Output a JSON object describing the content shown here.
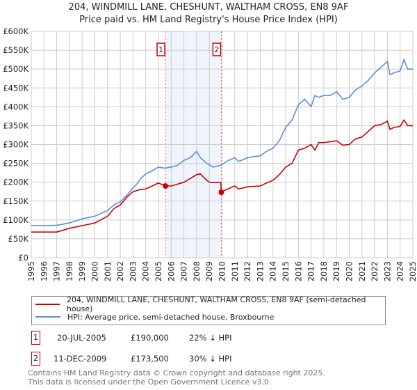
{
  "chart_data": {
    "type": "line",
    "title": "204, WINDMILL LANE, CHESHUNT, WALTHAM CROSS, EN8 9AF",
    "subtitle": "Price paid vs. HM Land Registry's House Price Index (HPI)",
    "xlabel": "",
    "ylabel": "",
    "xlim": [
      1995,
      2025
    ],
    "ylim": [
      0,
      600000
    ],
    "x_ticks": [
      "1995",
      "1996",
      "1997",
      "1998",
      "1999",
      "2000",
      "2001",
      "2002",
      "2003",
      "2004",
      "2005",
      "2006",
      "2007",
      "2008",
      "2009",
      "2010",
      "2011",
      "2012",
      "2013",
      "2014",
      "2015",
      "2016",
      "2017",
      "2018",
      "2019",
      "2020",
      "2021",
      "2022",
      "2023",
      "2024",
      "2025"
    ],
    "y_ticks": [
      {
        "value": 0,
        "label": "£0"
      },
      {
        "value": 50000,
        "label": "£50K"
      },
      {
        "value": 100000,
        "label": "£100K"
      },
      {
        "value": 150000,
        "label": "£150K"
      },
      {
        "value": 200000,
        "label": "£200K"
      },
      {
        "value": 250000,
        "label": "£250K"
      },
      {
        "value": 300000,
        "label": "£300K"
      },
      {
        "value": 350000,
        "label": "£350K"
      },
      {
        "value": 400000,
        "label": "£400K"
      },
      {
        "value": 450000,
        "label": "£450K"
      },
      {
        "value": 500000,
        "label": "£500K"
      },
      {
        "value": 550000,
        "label": "£550K"
      },
      {
        "value": 600000,
        "label": "£600K"
      }
    ],
    "grid": true,
    "highlight_range": [
      2005.55,
      2009.94
    ],
    "series": [
      {
        "name": "204, WINDMILL LANE, CHESHUNT, WALTHAM CROSS, EN8 9AF (semi-detached house)",
        "color": "#cc0000",
        "x": [
          1995,
          1996,
          1997,
          1998,
          1999,
          2000,
          2001,
          2001.5,
          2002,
          2002.5,
          2003,
          2003.5,
          2004,
          2004.5,
          2005,
          2005.55,
          2006,
          2006.5,
          2007,
          2007.5,
          2008,
          2008.3,
          2008.7,
          2009,
          2009.9,
          2009.94,
          2010.3,
          2011,
          2011.3,
          2012,
          2013,
          2013.5,
          2014,
          2014.5,
          2015,
          2015.5,
          2016,
          2016.5,
          2017,
          2017.3,
          2017.6,
          2018,
          2019,
          2019.5,
          2020,
          2020.5,
          2021,
          2021.5,
          2022,
          2022.5,
          2023,
          2023.2,
          2023.5,
          2024,
          2024.3,
          2024.6,
          2025
        ],
        "y": [
          68000,
          68000,
          68000,
          78000,
          85000,
          92000,
          110000,
          130000,
          140000,
          160000,
          175000,
          180000,
          182000,
          190000,
          198000,
          190000,
          190000,
          195000,
          200000,
          210000,
          220000,
          222000,
          208000,
          200000,
          199000,
          173500,
          180000,
          190000,
          182000,
          188000,
          190000,
          198000,
          205000,
          220000,
          240000,
          250000,
          285000,
          290000,
          300000,
          285000,
          305000,
          305000,
          310000,
          298000,
          300000,
          315000,
          320000,
          335000,
          350000,
          353000,
          362000,
          340000,
          345000,
          348000,
          365000,
          350000,
          350000
        ]
      },
      {
        "name": "HPI: Average price, semi-detached house, Broxbourne",
        "color": "#5b8fd6",
        "x": [
          1995,
          1996,
          1997,
          1998,
          1999,
          2000,
          2001,
          2001.5,
          2002,
          2002.5,
          2003,
          2003.3,
          2003.6,
          2004,
          2004.5,
          2005,
          2005.5,
          2006,
          2006.5,
          2007,
          2007.5,
          2008,
          2008.3,
          2008.8,
          2009.3,
          2009.9,
          2010.5,
          2011,
          2011.3,
          2012,
          2012.5,
          2013,
          2013.5,
          2014,
          2014.5,
          2015,
          2015.5,
          2016,
          2016.5,
          2017,
          2017.3,
          2017.6,
          2018,
          2018.5,
          2019,
          2019.5,
          2020,
          2020.5,
          2021,
          2021.5,
          2022,
          2022.5,
          2023,
          2023.2,
          2023.5,
          2024,
          2024.3,
          2024.6,
          2025
        ],
        "y": [
          85000,
          85000,
          86000,
          92000,
          103000,
          110000,
          125000,
          140000,
          148000,
          165000,
          185000,
          195000,
          210000,
          222000,
          230000,
          240000,
          237000,
          240000,
          245000,
          258000,
          265000,
          282000,
          265000,
          250000,
          240000,
          245000,
          258000,
          265000,
          255000,
          265000,
          268000,
          270000,
          282000,
          290000,
          310000,
          345000,
          365000,
          405000,
          420000,
          400000,
          430000,
          425000,
          430000,
          430000,
          440000,
          420000,
          425000,
          445000,
          455000,
          470000,
          490000,
          505000,
          520000,
          485000,
          490000,
          495000,
          525000,
          500000,
          500000
        ]
      }
    ],
    "sales": [
      {
        "id": "1",
        "x": 2005.55,
        "y": 190000
      },
      {
        "id": "2",
        "x": 2009.94,
        "y": 173500
      }
    ]
  },
  "legend": {
    "property": "204, WINDMILL LANE, CHESHUNT, WALTHAM CROSS, EN8 9AF (semi-detached house)",
    "hpi": "HPI: Average price, semi-detached house, Broxbourne"
  },
  "transactions": [
    {
      "id": "1",
      "date": "20-JUL-2005",
      "price": "£190,000",
      "hpi": "22% ↓ HPI"
    },
    {
      "id": "2",
      "date": "11-DEC-2009",
      "price": "£173,500",
      "hpi": "30% ↓ HPI"
    }
  ],
  "footer": {
    "line1": "Contains HM Land Registry data © Crown copyright and database right 2025.",
    "line2": "This data is licensed under the Open Government Licence v3.0."
  }
}
